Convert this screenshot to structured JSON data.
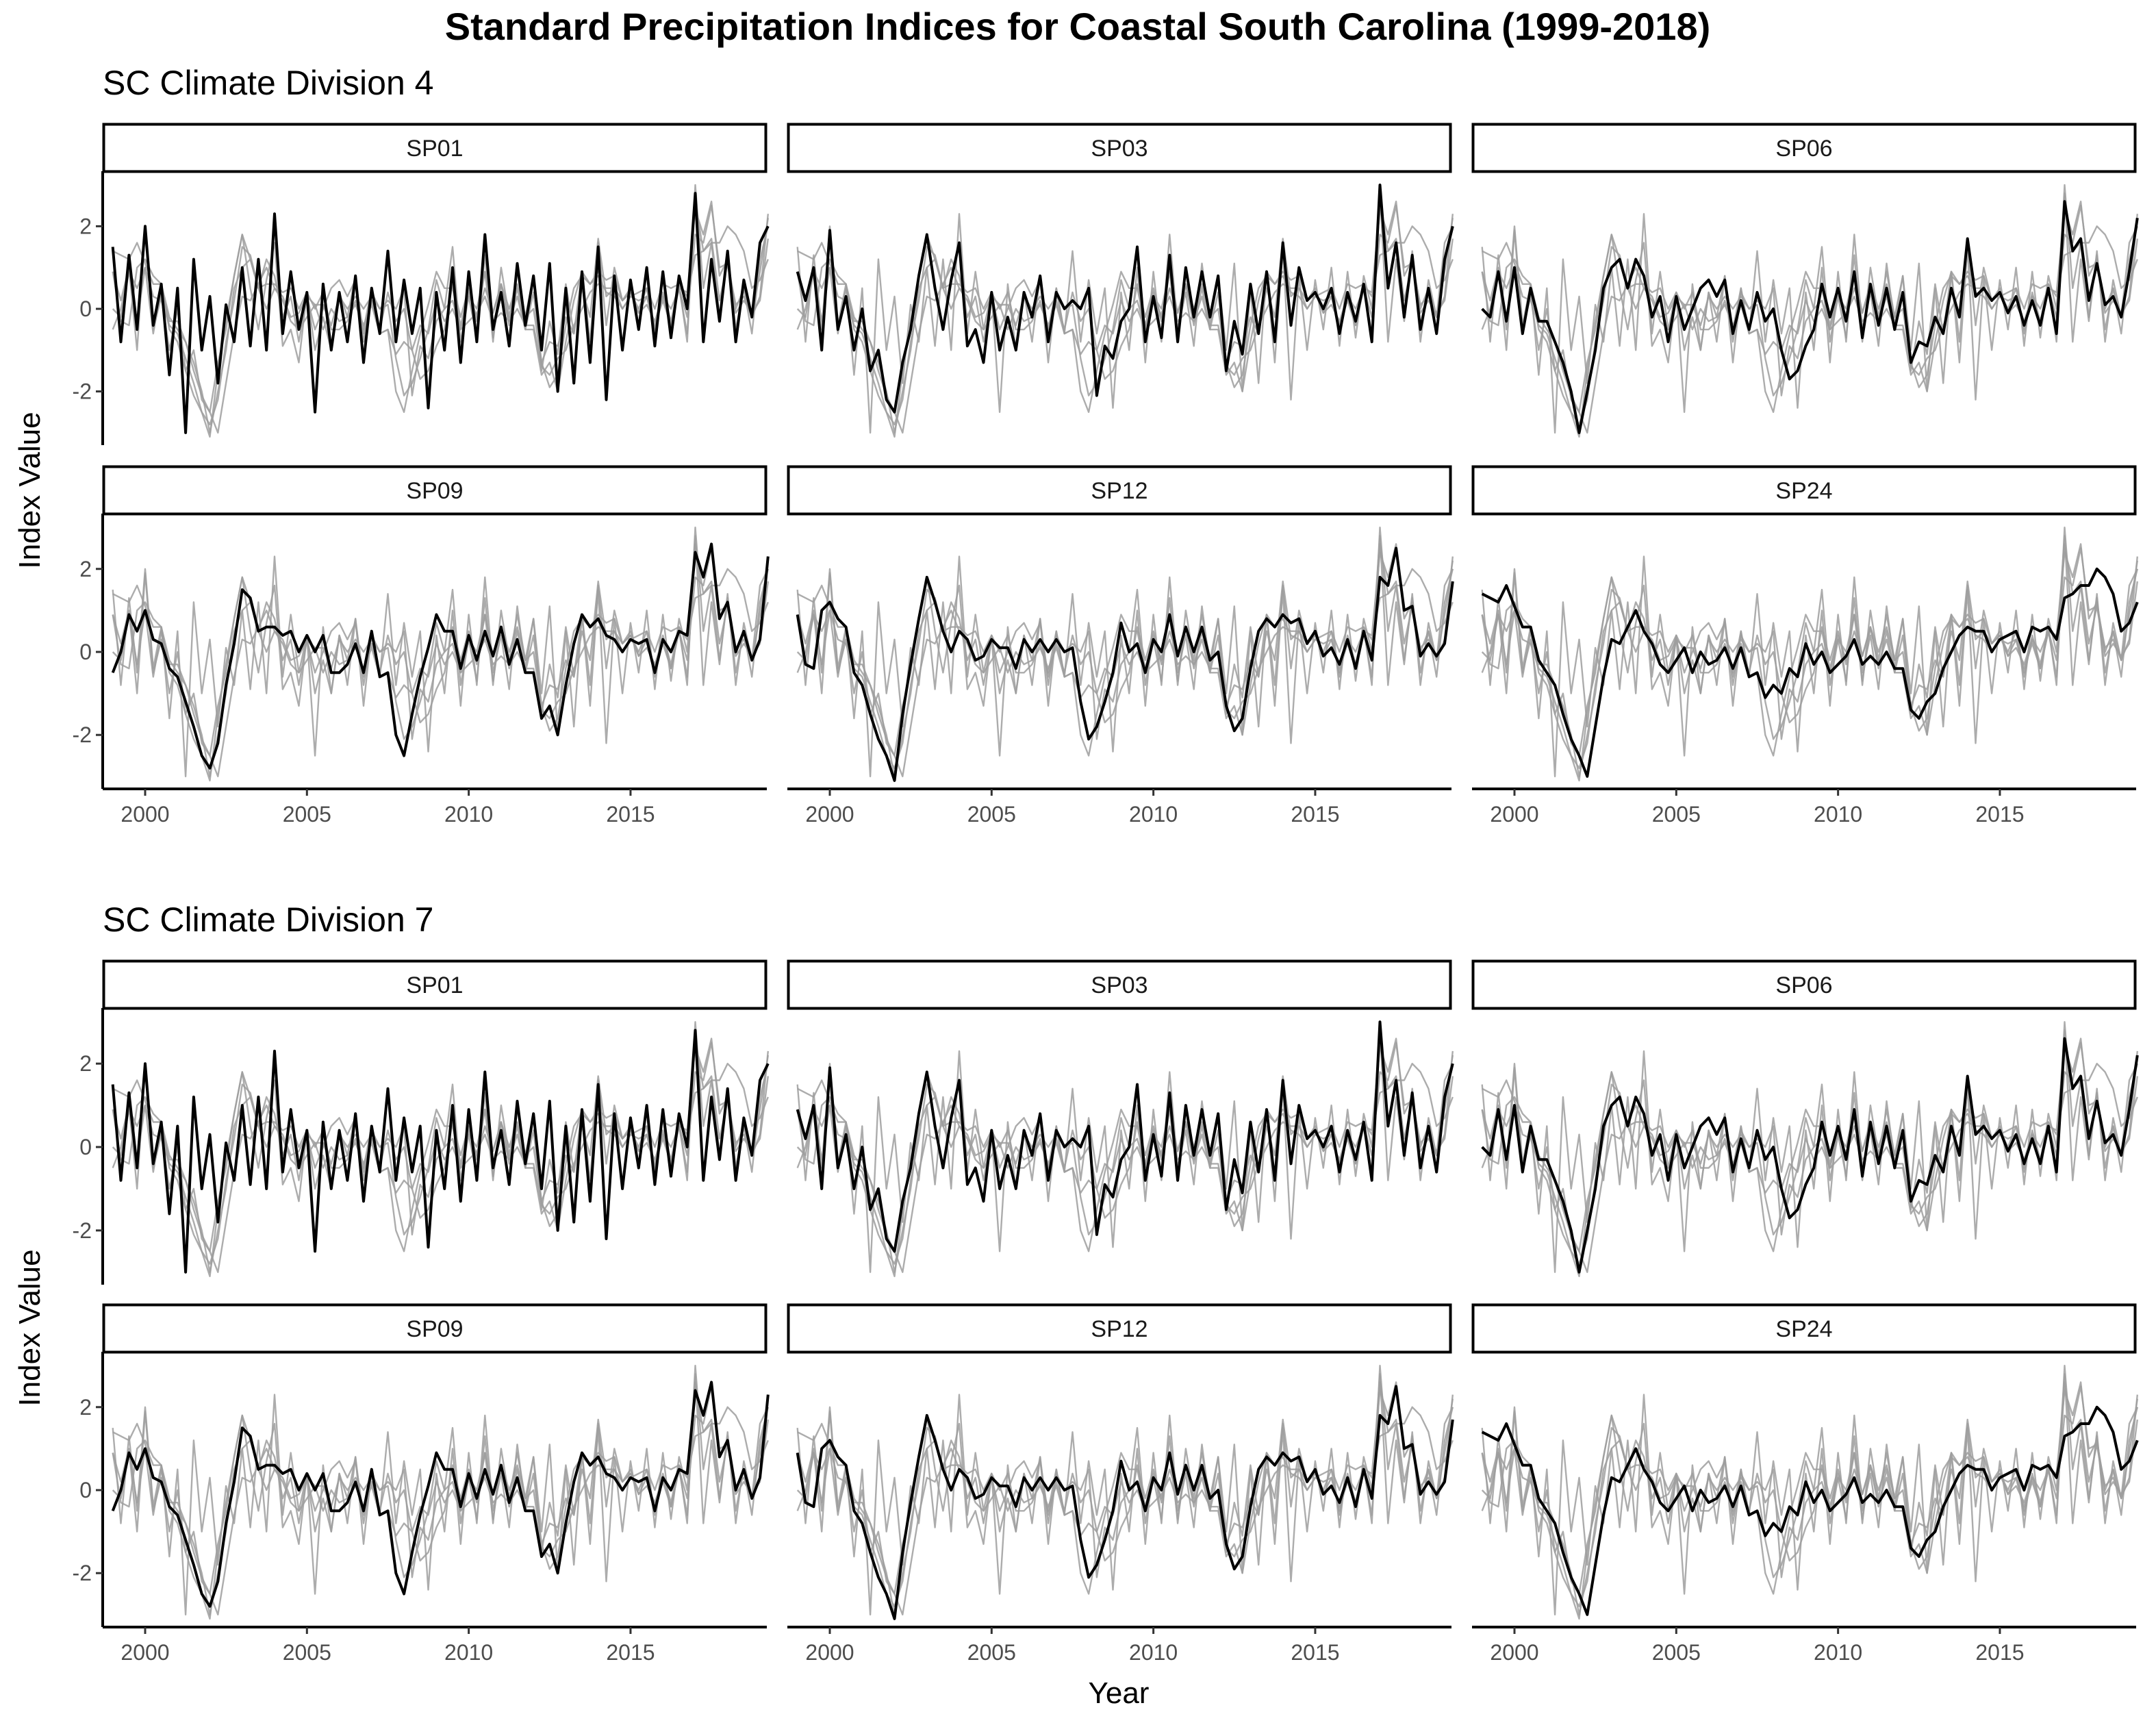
{
  "figure": {
    "title": "Standard Precipitation Indices for Coastal South Carolina (1999-2018)",
    "xlabel": "Year",
    "ylabel": "Index Value"
  },
  "colors": {
    "highlight": "#000000",
    "background_series": "#9e9e9e",
    "axis": "#000000",
    "tick_text": "#4d4d4d"
  },
  "chart_data": [
    {
      "type": "line",
      "title": "SC Climate Division 4",
      "facets": [
        "SP01",
        "SP03",
        "SP06",
        "SP09",
        "SP12",
        "SP24"
      ],
      "xlim": [
        1998.9,
        2019.0
      ],
      "ylim": [
        -3.3,
        3.3
      ],
      "x_ticks": [
        2000,
        2005,
        2010,
        2015
      ],
      "y_ticks": [
        2,
        0,
        -2
      ],
      "x_tick_labels": [
        "2000",
        "2005",
        "2010",
        "2015"
      ],
      "y_tick_labels": [
        "2",
        "0",
        "-2"
      ],
      "grid": false,
      "x_start": 1999.0,
      "x_step": 0.25,
      "series": [
        {
          "name": "SP01",
          "values": [
            1.5,
            -0.8,
            1.3,
            -0.5,
            2.0,
            -0.4,
            0.6,
            -1.6,
            0.5,
            -3.0,
            1.2,
            -1.0,
            0.3,
            -1.8,
            0.1,
            -0.8,
            1.0,
            -0.9,
            1.2,
            -1.0,
            2.3,
            -0.6,
            0.9,
            -0.5,
            0.4,
            -2.5,
            0.6,
            -1.0,
            0.4,
            -0.8,
            0.8,
            -1.3,
            0.5,
            -0.6,
            1.4,
            -0.8,
            0.7,
            -0.6,
            0.5,
            -2.4,
            0.4,
            -1.0,
            1.0,
            -1.3,
            0.9,
            -0.8,
            1.8,
            -0.5,
            0.4,
            -0.9,
            1.1,
            -0.4,
            0.8,
            -1.0,
            1.1,
            -2.0,
            0.5,
            -1.8,
            0.9,
            -1.3,
            1.5,
            -2.2,
            0.8,
            -1.0,
            0.7,
            -0.5,
            1.0,
            -0.9,
            0.9,
            -0.7,
            0.8,
            0.0,
            2.8,
            -0.8,
            1.2,
            -0.3,
            1.4,
            -0.8,
            0.7,
            -0.2,
            1.6,
            2.0
          ]
        },
        {
          "name": "SP03",
          "values": [
            0.9,
            0.2,
            1.0,
            -1.0,
            1.9,
            -0.5,
            0.3,
            -1.0,
            0.0,
            -1.5,
            -1.0,
            -2.2,
            -2.5,
            -1.3,
            -0.5,
            0.8,
            1.8,
            0.5,
            -0.5,
            0.7,
            1.6,
            -0.9,
            -0.5,
            -1.3,
            0.4,
            -1.0,
            -0.2,
            -1.0,
            0.4,
            -0.2,
            0.8,
            -0.8,
            0.4,
            0.0,
            0.2,
            0.0,
            0.5,
            -2.1,
            -0.9,
            -1.2,
            -0.3,
            0.0,
            1.5,
            -0.8,
            0.3,
            -0.7,
            1.3,
            -0.8,
            1.0,
            -0.2,
            0.9,
            -0.2,
            0.8,
            -1.5,
            -0.3,
            -1.1,
            0.6,
            -0.6,
            0.9,
            -0.8,
            1.6,
            -0.4,
            1.0,
            0.2,
            0.4,
            0.0,
            0.5,
            -0.6,
            0.4,
            -0.3,
            0.6,
            -0.8,
            3.0,
            0.5,
            1.6,
            -0.2,
            1.3,
            -0.5,
            0.5,
            -0.6,
            1.2,
            2.0
          ]
        },
        {
          "name": "SP06",
          "values": [
            0.0,
            -0.2,
            0.9,
            -0.3,
            1.0,
            -0.6,
            0.5,
            -0.3,
            -0.3,
            -0.8,
            -1.3,
            -2.0,
            -3.0,
            -2.0,
            -1.0,
            0.5,
            1.0,
            1.2,
            0.5,
            1.2,
            0.8,
            -0.2,
            0.3,
            -0.8,
            0.3,
            -0.5,
            0.0,
            0.5,
            0.7,
            0.3,
            0.7,
            -0.6,
            0.2,
            -0.5,
            0.4,
            -0.3,
            0.0,
            -1.0,
            -1.7,
            -1.5,
            -0.9,
            -0.5,
            0.6,
            -0.2,
            0.5,
            -0.3,
            0.9,
            -0.7,
            0.6,
            -0.4,
            0.5,
            -0.5,
            0.4,
            -1.3,
            -0.8,
            -0.9,
            -0.2,
            -0.6,
            0.5,
            -0.2,
            1.7,
            0.3,
            0.5,
            0.2,
            0.4,
            -0.1,
            0.3,
            -0.4,
            0.2,
            -0.4,
            0.5,
            -0.6,
            2.6,
            1.4,
            1.7,
            0.2,
            1.1,
            0.1,
            0.3,
            -0.2,
            0.9,
            2.2
          ]
        },
        {
          "name": "SP09",
          "values": [
            -0.5,
            0.0,
            0.9,
            0.5,
            1.0,
            0.3,
            0.2,
            -0.4,
            -0.6,
            -1.2,
            -1.8,
            -2.5,
            -2.8,
            -2.2,
            -0.8,
            0.2,
            1.5,
            1.3,
            0.5,
            0.6,
            0.6,
            0.4,
            0.5,
            0.0,
            0.4,
            0.0,
            0.4,
            -0.5,
            -0.5,
            -0.3,
            0.2,
            -0.5,
            0.5,
            -0.6,
            -0.5,
            -2.0,
            -2.5,
            -1.5,
            -0.6,
            0.1,
            0.9,
            0.5,
            0.5,
            -0.4,
            0.4,
            -0.2,
            0.5,
            -0.1,
            0.6,
            -0.3,
            0.3,
            -0.5,
            -0.5,
            -1.6,
            -1.3,
            -2.0,
            -0.8,
            0.2,
            0.9,
            0.6,
            0.8,
            0.4,
            0.3,
            0.0,
            0.3,
            0.2,
            0.3,
            -0.5,
            0.3,
            0.0,
            0.5,
            0.4,
            2.4,
            1.8,
            2.6,
            0.8,
            1.2,
            0.0,
            0.5,
            -0.2,
            0.3,
            2.3
          ]
        },
        {
          "name": "SP12",
          "values": [
            0.9,
            -0.3,
            -0.4,
            1.0,
            1.2,
            0.8,
            0.6,
            -0.5,
            -0.8,
            -1.5,
            -2.1,
            -2.5,
            -3.1,
            -1.5,
            -0.3,
            0.8,
            1.8,
            1.2,
            0.5,
            0.0,
            0.5,
            0.3,
            -0.2,
            -0.1,
            0.3,
            0.1,
            0.1,
            -0.4,
            0.3,
            0.0,
            0.3,
            0.0,
            0.3,
            0.0,
            0.1,
            -1.2,
            -2.1,
            -1.8,
            -1.2,
            -0.5,
            0.7,
            0.0,
            0.2,
            -0.5,
            0.3,
            0.0,
            0.9,
            -0.1,
            0.6,
            0.0,
            0.6,
            -0.2,
            0.0,
            -1.3,
            -1.9,
            -1.6,
            -0.4,
            0.5,
            0.8,
            0.6,
            0.9,
            0.7,
            0.8,
            0.2,
            0.5,
            -0.1,
            0.1,
            -0.3,
            0.3,
            -0.4,
            0.5,
            -0.2,
            1.8,
            1.6,
            2.5,
            1.0,
            1.1,
            -0.1,
            0.2,
            -0.1,
            0.2,
            1.7
          ]
        },
        {
          "name": "SP24",
          "values": [
            1.4,
            1.3,
            1.2,
            1.6,
            1.1,
            0.6,
            0.6,
            -0.2,
            -0.5,
            -0.8,
            -1.5,
            -2.1,
            -2.5,
            -3.0,
            -1.8,
            -0.6,
            0.3,
            0.2,
            0.6,
            1.0,
            0.5,
            0.2,
            -0.3,
            -0.5,
            -0.2,
            0.1,
            -0.5,
            0.0,
            -0.3,
            -0.2,
            0.1,
            -0.4,
            0.1,
            -0.6,
            -0.5,
            -1.1,
            -0.8,
            -1.0,
            -0.4,
            -0.6,
            0.2,
            -0.3,
            0.0,
            -0.5,
            -0.3,
            -0.1,
            0.3,
            -0.3,
            -0.1,
            -0.3,
            0.0,
            -0.4,
            -0.4,
            -1.4,
            -1.6,
            -1.2,
            -1.0,
            -0.4,
            0.0,
            0.4,
            0.6,
            0.5,
            0.5,
            0.0,
            0.3,
            0.4,
            0.5,
            0.0,
            0.6,
            0.5,
            0.6,
            0.3,
            1.3,
            1.4,
            1.6,
            1.6,
            2.0,
            1.8,
            1.4,
            0.5,
            0.7,
            1.2
          ]
        }
      ]
    },
    {
      "type": "line",
      "title": "SC Climate Division 7",
      "facets": [
        "SP01",
        "SP03",
        "SP06",
        "SP09",
        "SP12",
        "SP24"
      ],
      "xlim": [
        1998.9,
        2019.0
      ],
      "ylim": [
        -3.3,
        3.3
      ],
      "x_ticks": [
        2000,
        2005,
        2010,
        2015
      ],
      "y_ticks": [
        2,
        0,
        -2
      ],
      "x_tick_labels": [
        "2000",
        "2005",
        "2010",
        "2015"
      ],
      "y_tick_labels": [
        "2",
        "0",
        "-2"
      ],
      "grid": false,
      "x_start": 1999.0,
      "x_step": 0.25,
      "series": [
        {
          "name": "SP01",
          "values": [
            1.5,
            -0.8,
            1.3,
            -0.5,
            2.0,
            -0.4,
            0.6,
            -1.6,
            0.5,
            -3.0,
            1.2,
            -1.0,
            0.3,
            -1.8,
            0.1,
            -0.8,
            1.0,
            -0.9,
            1.2,
            -1.0,
            2.3,
            -0.6,
            0.9,
            -0.5,
            0.4,
            -2.5,
            0.6,
            -1.0,
            0.4,
            -0.8,
            0.8,
            -1.3,
            0.5,
            -0.6,
            1.4,
            -0.8,
            0.7,
            -0.6,
            0.5,
            -2.4,
            0.4,
            -1.0,
            1.0,
            -1.3,
            0.9,
            -0.8,
            1.8,
            -0.5,
            0.4,
            -0.9,
            1.1,
            -0.4,
            0.8,
            -1.0,
            1.1,
            -2.0,
            0.5,
            -1.8,
            0.9,
            -1.3,
            1.5,
            -2.2,
            0.8,
            -1.0,
            0.7,
            -0.5,
            1.0,
            -0.9,
            0.9,
            -0.7,
            0.8,
            0.0,
            2.8,
            -0.8,
            1.2,
            -0.3,
            1.4,
            -0.8,
            0.7,
            -0.2,
            1.6,
            2.0
          ]
        },
        {
          "name": "SP03",
          "values": [
            0.9,
            0.2,
            1.0,
            -1.0,
            1.9,
            -0.5,
            0.3,
            -1.0,
            0.0,
            -1.5,
            -1.0,
            -2.2,
            -2.5,
            -1.3,
            -0.5,
            0.8,
            1.8,
            0.5,
            -0.5,
            0.7,
            1.6,
            -0.9,
            -0.5,
            -1.3,
            0.4,
            -1.0,
            -0.2,
            -1.0,
            0.4,
            -0.2,
            0.8,
            -0.8,
            0.4,
            0.0,
            0.2,
            0.0,
            0.5,
            -2.1,
            -0.9,
            -1.2,
            -0.3,
            0.0,
            1.5,
            -0.8,
            0.3,
            -0.7,
            1.3,
            -0.8,
            1.0,
            -0.2,
            0.9,
            -0.2,
            0.8,
            -1.5,
            -0.3,
            -1.1,
            0.6,
            -0.6,
            0.9,
            -0.8,
            1.6,
            -0.4,
            1.0,
            0.2,
            0.4,
            0.0,
            0.5,
            -0.6,
            0.4,
            -0.3,
            0.6,
            -0.8,
            3.0,
            0.5,
            1.6,
            -0.2,
            1.3,
            -0.5,
            0.5,
            -0.6,
            1.2,
            2.0
          ]
        },
        {
          "name": "SP06",
          "values": [
            0.0,
            -0.2,
            0.9,
            -0.3,
            1.0,
            -0.6,
            0.5,
            -0.3,
            -0.3,
            -0.8,
            -1.3,
            -2.0,
            -3.0,
            -2.0,
            -1.0,
            0.5,
            1.0,
            1.2,
            0.5,
            1.2,
            0.8,
            -0.2,
            0.3,
            -0.8,
            0.3,
            -0.5,
            0.0,
            0.5,
            0.7,
            0.3,
            0.7,
            -0.6,
            0.2,
            -0.5,
            0.4,
            -0.3,
            0.0,
            -1.0,
            -1.7,
            -1.5,
            -0.9,
            -0.5,
            0.6,
            -0.2,
            0.5,
            -0.3,
            0.9,
            -0.7,
            0.6,
            -0.4,
            0.5,
            -0.5,
            0.4,
            -1.3,
            -0.8,
            -0.9,
            -0.2,
            -0.6,
            0.5,
            -0.2,
            1.7,
            0.3,
            0.5,
            0.2,
            0.4,
            -0.1,
            0.3,
            -0.4,
            0.2,
            -0.4,
            0.5,
            -0.6,
            2.6,
            1.4,
            1.7,
            0.2,
            1.1,
            0.1,
            0.3,
            -0.2,
            0.9,
            2.2
          ]
        },
        {
          "name": "SP09",
          "values": [
            -0.5,
            0.0,
            0.9,
            0.5,
            1.0,
            0.3,
            0.2,
            -0.4,
            -0.6,
            -1.2,
            -1.8,
            -2.5,
            -2.8,
            -2.2,
            -0.8,
            0.2,
            1.5,
            1.3,
            0.5,
            0.6,
            0.6,
            0.4,
            0.5,
            0.0,
            0.4,
            0.0,
            0.4,
            -0.5,
            -0.5,
            -0.3,
            0.2,
            -0.5,
            0.5,
            -0.6,
            -0.5,
            -2.0,
            -2.5,
            -1.5,
            -0.6,
            0.1,
            0.9,
            0.5,
            0.5,
            -0.4,
            0.4,
            -0.2,
            0.5,
            -0.1,
            0.6,
            -0.3,
            0.3,
            -0.5,
            -0.5,
            -1.6,
            -1.3,
            -2.0,
            -0.8,
            0.2,
            0.9,
            0.6,
            0.8,
            0.4,
            0.3,
            0.0,
            0.3,
            0.2,
            0.3,
            -0.5,
            0.3,
            0.0,
            0.5,
            0.4,
            2.4,
            1.8,
            2.6,
            0.8,
            1.2,
            0.0,
            0.5,
            -0.2,
            0.3,
            2.3
          ]
        },
        {
          "name": "SP12",
          "values": [
            0.9,
            -0.3,
            -0.4,
            1.0,
            1.2,
            0.8,
            0.6,
            -0.5,
            -0.8,
            -1.5,
            -2.1,
            -2.5,
            -3.1,
            -1.5,
            -0.3,
            0.8,
            1.8,
            1.2,
            0.5,
            0.0,
            0.5,
            0.3,
            -0.2,
            -0.1,
            0.3,
            0.1,
            0.1,
            -0.4,
            0.3,
            0.0,
            0.3,
            0.0,
            0.3,
            0.0,
            0.1,
            -1.2,
            -2.1,
            -1.8,
            -1.2,
            -0.5,
            0.7,
            0.0,
            0.2,
            -0.5,
            0.3,
            0.0,
            0.9,
            -0.1,
            0.6,
            0.0,
            0.6,
            -0.2,
            0.0,
            -1.3,
            -1.9,
            -1.6,
            -0.4,
            0.5,
            0.8,
            0.6,
            0.9,
            0.7,
            0.8,
            0.2,
            0.5,
            -0.1,
            0.1,
            -0.3,
            0.3,
            -0.4,
            0.5,
            -0.2,
            1.8,
            1.6,
            2.5,
            1.0,
            1.1,
            -0.1,
            0.2,
            -0.1,
            0.2,
            1.7
          ]
        },
        {
          "name": "SP24",
          "values": [
            1.4,
            1.3,
            1.2,
            1.6,
            1.1,
            0.6,
            0.6,
            -0.2,
            -0.5,
            -0.8,
            -1.5,
            -2.1,
            -2.5,
            -3.0,
            -1.8,
            -0.6,
            0.3,
            0.2,
            0.6,
            1.0,
            0.5,
            0.2,
            -0.3,
            -0.5,
            -0.2,
            0.1,
            -0.5,
            0.0,
            -0.3,
            -0.2,
            0.1,
            -0.4,
            0.1,
            -0.6,
            -0.5,
            -1.1,
            -0.8,
            -1.0,
            -0.4,
            -0.6,
            0.2,
            -0.3,
            0.0,
            -0.5,
            -0.3,
            -0.1,
            0.3,
            -0.3,
            -0.1,
            -0.3,
            0.0,
            -0.4,
            -0.4,
            -1.4,
            -1.6,
            -1.2,
            -1.0,
            -0.4,
            0.0,
            0.4,
            0.6,
            0.5,
            0.5,
            0.0,
            0.3,
            0.4,
            0.5,
            0.0,
            0.6,
            0.5,
            0.6,
            0.3,
            1.3,
            1.4,
            1.6,
            1.6,
            2.0,
            1.8,
            1.4,
            0.5,
            0.7,
            1.2
          ]
        }
      ]
    }
  ]
}
